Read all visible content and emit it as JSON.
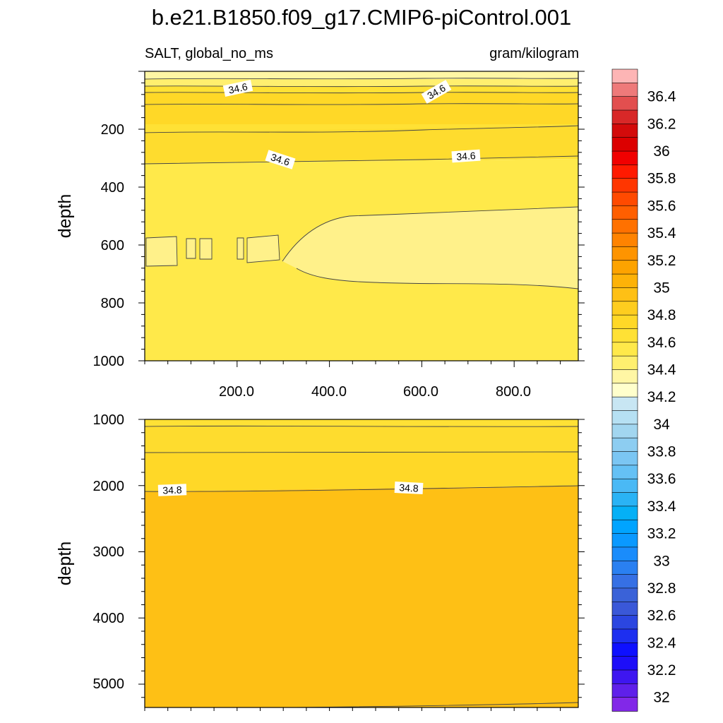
{
  "chart_data": {
    "type": "contour",
    "title": "b.e21.B1850.f09_g17.CMIP6-piControl.001",
    "subtitle_left": "SALT, global_no_ms",
    "subtitle_right": "gram/kilogram",
    "panels": [
      {
        "name": "upper",
        "ylabel": "depth",
        "xlim": [
          0,
          940
        ],
        "ylim": [
          1000,
          0
        ],
        "y_ticks": [
          "200",
          "400",
          "600",
          "800",
          "1000"
        ],
        "x_ticks": [
          "200.0",
          "400.0",
          "600.0",
          "800.0"
        ],
        "contour_labels": [
          "34.6",
          "34.6",
          "34.6",
          "34.6"
        ]
      },
      {
        "name": "lower",
        "ylabel": "depth",
        "xlim": [
          0,
          940
        ],
        "ylim": [
          5350,
          1000
        ],
        "y_ticks": [
          "1000",
          "2000",
          "3000",
          "4000",
          "5000"
        ],
        "contour_labels": [
          "34.8",
          "34.8"
        ]
      }
    ],
    "colorbar": {
      "labels": [
        "36.4",
        "36.2",
        "36",
        "35.8",
        "35.6",
        "35.4",
        "35.2",
        "35",
        "34.8",
        "34.6",
        "34.4",
        "34.2",
        "34",
        "33.8",
        "33.6",
        "33.4",
        "33.2",
        "33",
        "32.8",
        "32.6",
        "32.4",
        "32.2",
        "32"
      ],
      "colors": [
        "#fdb5b5",
        "#ee7a7a",
        "#e24f4f",
        "#d82828",
        "#d30b0b",
        "#dc0000",
        "#f10000",
        "#ff1a00",
        "#ff3600",
        "#ff4a00",
        "#ff5f00",
        "#ff7100",
        "#ff8300",
        "#fe9400",
        "#fda300",
        "#fdb208",
        "#fec015",
        "#fecd1f",
        "#ffd827",
        "#ffe135",
        "#ffe94a",
        "#ffef6f",
        "#fff6a4",
        "#ffffcc",
        "#c8e6f3",
        "#b6e0f3",
        "#a2d6f0",
        "#8dcdf1",
        "#7bc6f3",
        "#65c1f5",
        "#4ab9f5",
        "#2ab3f5",
        "#05b0f6",
        "#00a4ff",
        "#0a99ff",
        "#1a8cfb",
        "#2a80f1",
        "#3670e4",
        "#3a62d8",
        "#3a58d8",
        "#2b46e0",
        "#1d2ff0",
        "#0e10ff",
        "#1d0ef8",
        "#3e16f0",
        "#5f20ea",
        "#8228e8"
      ]
    }
  }
}
